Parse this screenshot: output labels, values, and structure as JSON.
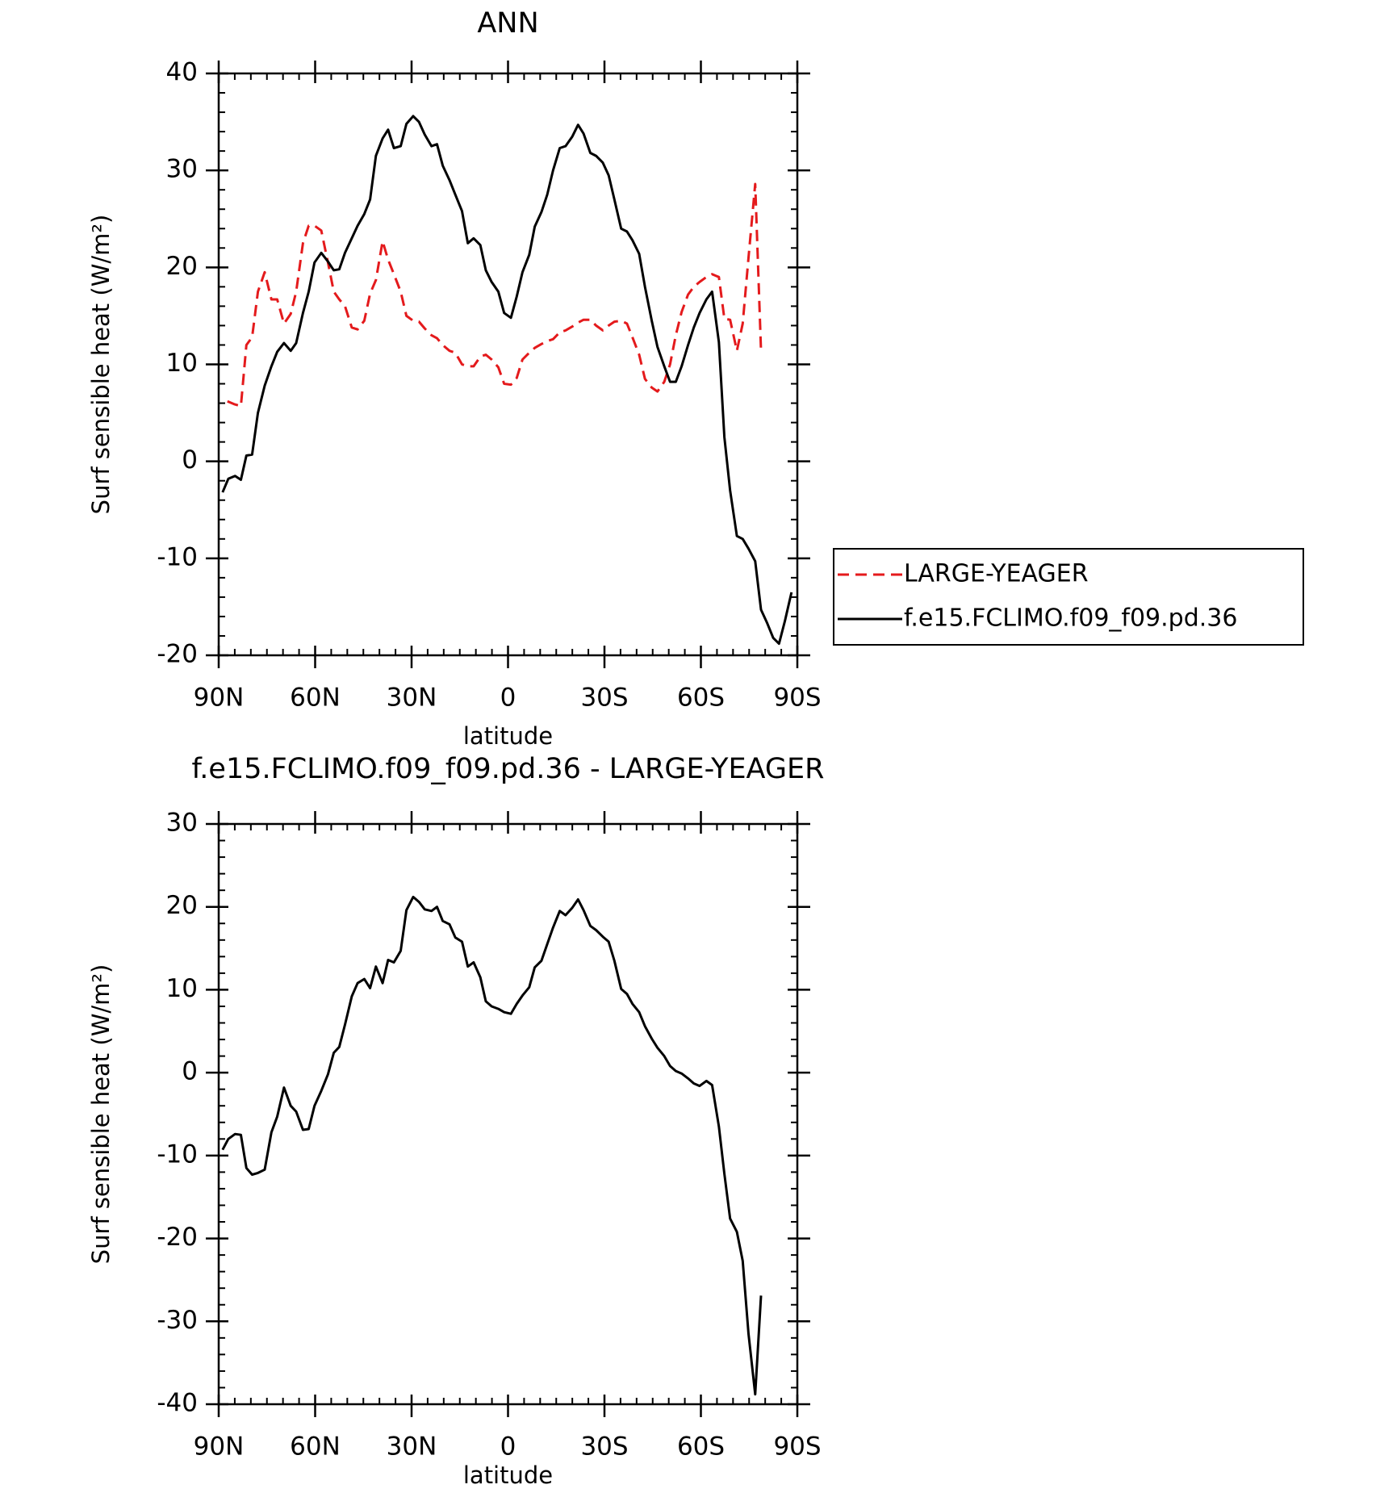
{
  "chart_data": [
    {
      "type": "line",
      "title": "ANN",
      "xlabel": "latitude",
      "ylabel": "Surf sensible heat (W/m²)",
      "xlim": [
        90,
        -90
      ],
      "xticks": [
        {
          "value": 90,
          "label": "90N"
        },
        {
          "value": 60,
          "label": "60N"
        },
        {
          "value": 30,
          "label": "30N"
        },
        0,
        {
          "value": -30,
          "label": "30S"
        },
        {
          "value": -60,
          "label": "60S"
        },
        {
          "value": -90,
          "label": "90S"
        }
      ],
      "ylim": [
        -20,
        40
      ],
      "yticks": [
        -20,
        -10,
        0,
        10,
        20,
        30,
        40
      ],
      "legend": "right",
      "series": [
        {
          "name": "LARGE-YEAGER",
          "color": "#e41a1c",
          "style": "dashed",
          "x": [
            87.3,
            85.2,
            83.1,
            81.4,
            79.6,
            77.8,
            75.7,
            73.6,
            71.8,
            69.7,
            67.6,
            65.9,
            63.8,
            62.0,
            60.2,
            58.1,
            56.0,
            54.2,
            52.5,
            50.7,
            48.6,
            46.8,
            44.7,
            42.9,
            41.1,
            39.0,
            37.3,
            35.5,
            33.4,
            31.6,
            29.5,
            27.7,
            25.9,
            23.8,
            22.1,
            20.3,
            18.2,
            16.4,
            14.3,
            12.5,
            10.7,
            8.6,
            6.9,
            5.1,
            3.0,
            1.2,
            -0.9,
            -2.7,
            -4.5,
            -6.6,
            -8.3,
            -10.4,
            -12.2,
            -14.0,
            -16.1,
            -17.9,
            -20.0,
            -21.8,
            -23.5,
            -25.6,
            -27.4,
            -29.5,
            -31.3,
            -33.1,
            -35.2,
            -37.0,
            -38.7,
            -40.8,
            -42.6,
            -44.7,
            -46.5,
            -48.6,
            -50.4,
            -52.2,
            -54.0,
            -56.0,
            -57.8,
            -59.6,
            -61.7,
            -63.5,
            -65.6,
            -67.3,
            -69.1,
            -71.2,
            -73.0,
            -74.8,
            -76.9,
            -78.7
          ],
          "values": [
            6.2,
            5.9,
            5.7,
            12,
            12.8,
            17.5,
            19.5,
            16.7,
            16.7,
            14.2,
            15.2,
            17.5,
            22.5,
            24.3,
            24.3,
            23.8,
            20.5,
            17.5,
            16.7,
            16,
            13.8,
            13.6,
            14.5,
            17.3,
            18.7,
            22.7,
            20.8,
            19.3,
            17.5,
            15,
            14.5,
            14.4,
            13.7,
            13,
            12.7,
            12,
            11.4,
            11.2,
            10,
            9.8,
            9.8,
            10.8,
            11,
            10.5,
            9.7,
            8,
            7.9,
            8.6,
            10.5,
            11.2,
            11.7,
            12.1,
            12.4,
            12.6,
            13.3,
            13.5,
            13.9,
            14.3,
            14.6,
            14.6,
            14,
            13.5,
            14,
            14.4,
            14.5,
            14.2,
            12.8,
            11,
            8.5,
            7.6,
            7.2,
            8.2,
            10,
            13,
            15.4,
            17.2,
            18,
            18.5,
            19,
            19.3,
            19,
            14.7,
            14.6,
            11.4,
            14.2,
            21,
            28.6,
            11.4
          ]
        },
        {
          "name": "f.e15.FCLIMO.f09_f09.pd.36",
          "color": "#000000",
          "style": "solid",
          "x": [
            88.8,
            87.0,
            84.9,
            83.1,
            81.4,
            79.6,
            77.8,
            75.7,
            73.6,
            71.8,
            69.7,
            67.6,
            65.9,
            63.8,
            62.0,
            60.2,
            58.1,
            56.0,
            54.2,
            52.5,
            50.7,
            48.6,
            46.8,
            44.7,
            42.9,
            41.1,
            39.0,
            37.3,
            35.5,
            33.4,
            31.6,
            29.5,
            27.7,
            25.9,
            23.8,
            22.1,
            20.3,
            18.2,
            16.4,
            14.3,
            12.5,
            10.7,
            8.6,
            6.9,
            5.1,
            3.0,
            1.2,
            -0.9,
            -2.7,
            -4.5,
            -6.6,
            -8.3,
            -10.4,
            -12.2,
            -14.0,
            -16.1,
            -17.9,
            -20.0,
            -21.8,
            -23.5,
            -25.6,
            -27.4,
            -29.5,
            -31.3,
            -33.1,
            -35.2,
            -37.0,
            -38.7,
            -40.8,
            -42.6,
            -44.7,
            -46.5,
            -48.6,
            -50.4,
            -52.2,
            -54.0,
            -56.0,
            -57.8,
            -59.6,
            -61.7,
            -63.5,
            -65.6,
            -67.3,
            -69.1,
            -71.2,
            -73.0,
            -74.8,
            -76.9,
            -78.7,
            -80.5,
            -82.5,
            -84.3,
            -86.1,
            -88.2
          ],
          "values": [
            -3.2,
            -1.8,
            -1.5,
            -1.9,
            0.6,
            0.7,
            5,
            7.8,
            9.8,
            11.3,
            12.2,
            11.4,
            12.2,
            15.3,
            17.5,
            20.5,
            21.5,
            20.6,
            19.7,
            19.8,
            21.5,
            23,
            24.3,
            25.5,
            27,
            31.5,
            33.3,
            34.2,
            32.3,
            32.5,
            34.8,
            35.6,
            35,
            33.7,
            32.5,
            32.7,
            30.5,
            29,
            27.5,
            25.8,
            22.5,
            23,
            22.3,
            19.7,
            18.5,
            17.5,
            15.3,
            14.8,
            17,
            19.5,
            21.3,
            24.2,
            25.7,
            27.5,
            30,
            32.3,
            32.5,
            33.5,
            34.7,
            33.8,
            31.8,
            31.5,
            30.8,
            29.5,
            27,
            24,
            23.7,
            22.8,
            21.4,
            18,
            14.5,
            11.8,
            9.8,
            8.2,
            8.2,
            9.8,
            12,
            13.8,
            15.3,
            16.7,
            17.5,
            12.3,
            2.5,
            -3,
            -7.7,
            -8,
            -9,
            -10.3,
            -15.3,
            -16.6,
            -18.2,
            -18.8,
            -16.5,
            -13.5
          ]
        }
      ]
    },
    {
      "type": "line",
      "title": "f.e15.FCLIMO.f09_f09.pd.36 - LARGE-YEAGER",
      "xlabel": "latitude",
      "ylabel": "Surf sensible heat (W/m²)",
      "xlim": [
        90,
        -90
      ],
      "xticks": [
        {
          "value": 90,
          "label": "90N"
        },
        {
          "value": 60,
          "label": "60N"
        },
        {
          "value": 30,
          "label": "30N"
        },
        0,
        {
          "value": -30,
          "label": "30S"
        },
        {
          "value": -60,
          "label": "60S"
        },
        {
          "value": -90,
          "label": "90S"
        }
      ],
      "ylim": [
        -40,
        30
      ],
      "yticks": [
        -40,
        -30,
        -20,
        -10,
        0,
        10,
        20,
        30
      ],
      "series": [
        {
          "color": "#000000",
          "style": "solid",
          "x": [
            88.8,
            87.0,
            84.9,
            83.1,
            81.4,
            79.6,
            77.8,
            75.7,
            73.6,
            71.8,
            69.7,
            67.6,
            65.9,
            63.8,
            62.0,
            60.2,
            58.1,
            56.0,
            54.2,
            52.5,
            50.7,
            48.6,
            46.8,
            44.7,
            42.9,
            41.1,
            39.0,
            37.3,
            35.5,
            33.4,
            31.6,
            29.5,
            27.7,
            25.9,
            23.8,
            22.1,
            20.3,
            18.2,
            16.4,
            14.3,
            12.5,
            10.7,
            8.6,
            6.9,
            5.1,
            3.0,
            1.2,
            -0.9,
            -2.7,
            -4.5,
            -6.6,
            -8.3,
            -10.4,
            -12.2,
            -14.0,
            -16.1,
            -17.9,
            -20.0,
            -21.8,
            -23.5,
            -25.6,
            -27.4,
            -29.5,
            -31.3,
            -33.1,
            -35.2,
            -37.0,
            -38.7,
            -40.8,
            -42.6,
            -44.7,
            -46.5,
            -48.6,
            -50.4,
            -52.2,
            -54.0,
            -56.0,
            -57.8,
            -59.6,
            -61.7,
            -63.5,
            -65.6,
            -67.3,
            -69.1,
            -71.2,
            -73.0,
            -74.8,
            -76.9,
            -78.7
          ],
          "values": [
            -9.3,
            -8,
            -7.4,
            -7.5,
            -11.5,
            -12.3,
            -12.1,
            -11.7,
            -7.2,
            -5.3,
            -1.8,
            -4,
            -4.7,
            -6.9,
            -6.8,
            -4,
            -2.2,
            -0.2,
            2.4,
            3.1,
            5.8,
            9.2,
            10.8,
            11.3,
            10.2,
            12.8,
            10.8,
            13.6,
            13.3,
            14.7,
            19.6,
            21.2,
            20.6,
            19.7,
            19.5,
            20,
            18.3,
            17.9,
            16.3,
            15.8,
            12.8,
            13.3,
            11.5,
            8.6,
            8,
            7.7,
            7.3,
            7.1,
            8.3,
            9.3,
            10.3,
            12.7,
            13.5,
            15.5,
            17.5,
            19.5,
            19,
            19.9,
            20.9,
            19.6,
            17.7,
            17.2,
            16.4,
            15.8,
            13.5,
            10.1,
            9.5,
            8.3,
            7.3,
            5.6,
            4.1,
            3,
            2,
            0.8,
            0.2,
            -0.1,
            -0.7,
            -1.3,
            -1.6,
            -1,
            -1.5,
            -6.5,
            -12.2,
            -17.6,
            -19.2,
            -22.7,
            -31.5,
            -38.8,
            -26.9
          ]
        }
      ]
    }
  ]
}
